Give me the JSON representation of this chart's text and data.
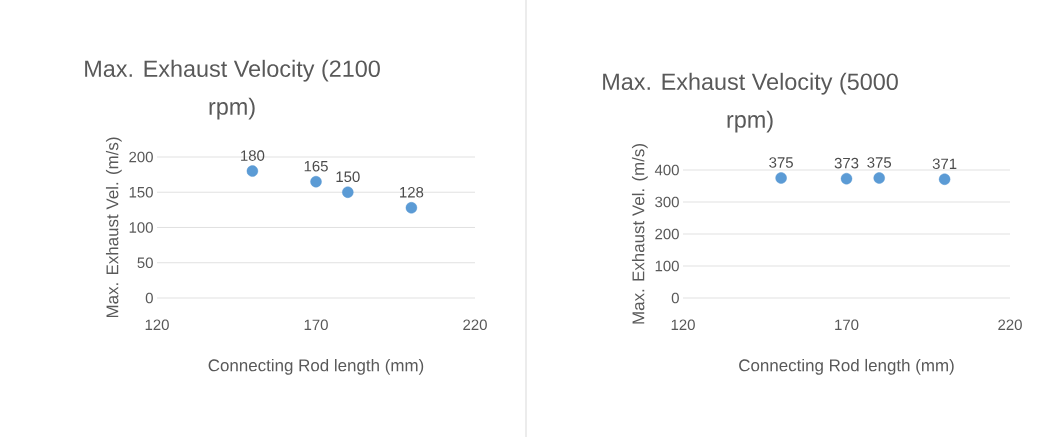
{
  "chart_data": [
    {
      "type": "scatter",
      "title": "Max. Exhaust Velocity (2100 rpm)",
      "xlabel": "Connecting Rod length (mm)",
      "ylabel": "Max. Exhaust Vel.  (m/s)",
      "x": [
        150,
        170,
        180,
        200
      ],
      "values": [
        180,
        165,
        150,
        128
      ],
      "value_labels": [
        "180",
        "165",
        "150",
        "128"
      ],
      "color": "#5b9bd5",
      "xlim": [
        120,
        220
      ],
      "xticks": [
        120,
        170,
        220
      ],
      "ylim": [
        0,
        200
      ],
      "yticks": [
        0,
        50,
        100,
        150,
        200
      ],
      "grid": "y",
      "marker": "circle"
    },
    {
      "type": "scatter",
      "title": "Max. Exhaust Velocity (5000 rpm)",
      "xlabel": "Connecting Rod length (mm)",
      "ylabel": "Max. Exhaust Vel.  (m/s)",
      "x": [
        150,
        170,
        180,
        200
      ],
      "values": [
        375,
        373,
        375,
        371
      ],
      "value_labels": [
        "375",
        "373",
        "375",
        "371"
      ],
      "color": "#5b9bd5",
      "xlim": [
        120,
        220
      ],
      "xticks": [
        120,
        170,
        220
      ],
      "ylim": [
        0,
        400
      ],
      "yticks": [
        0,
        100,
        200,
        300,
        400
      ],
      "grid": "y",
      "marker": "circle"
    }
  ]
}
